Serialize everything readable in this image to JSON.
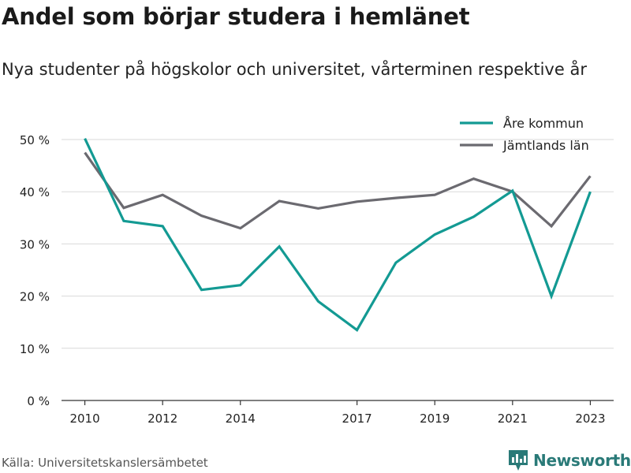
{
  "title": "Andel som börjar studera i hemlänet",
  "subtitle": "Nya studenter på högskolor och universitet, vårterminen respektive år",
  "source": "Källa: Universitetskanslersämbetet",
  "brand": {
    "name": "Newsworthy",
    "icon": "newsworthy-logo-icon",
    "color": "#2a7a78"
  },
  "chart_data": {
    "type": "line",
    "x": [
      2010,
      2011,
      2012,
      2013,
      2014,
      2015,
      2016,
      2017,
      2018,
      2019,
      2020,
      2021,
      2022,
      2023
    ],
    "x_ticks": [
      2010,
      2012,
      2014,
      2017,
      2019,
      2021,
      2023
    ],
    "y_ticks": [
      0,
      10,
      20,
      30,
      40,
      50
    ],
    "y_tick_labels": [
      "0 %",
      "10 %",
      "20 %",
      "30 %",
      "40 %",
      "50 %"
    ],
    "ylim": [
      0,
      50
    ],
    "xlim": [
      2009.4,
      2023.6
    ],
    "grid": true,
    "legend_position": "top-right",
    "series": [
      {
        "name": "Åre kommun",
        "color": "#139a93",
        "values": [
          50.2,
          34.4,
          33.4,
          21.2,
          22.1,
          29.5,
          19.0,
          13.5,
          26.4,
          31.8,
          35.2,
          40.2,
          20.0,
          40.0
        ]
      },
      {
        "name": "Jämtlands län",
        "color": "#6b6a70",
        "values": [
          47.5,
          36.9,
          39.4,
          35.4,
          33.0,
          38.2,
          36.8,
          38.1,
          38.8,
          39.4,
          42.5,
          40.0,
          33.4,
          43.0
        ]
      }
    ]
  }
}
